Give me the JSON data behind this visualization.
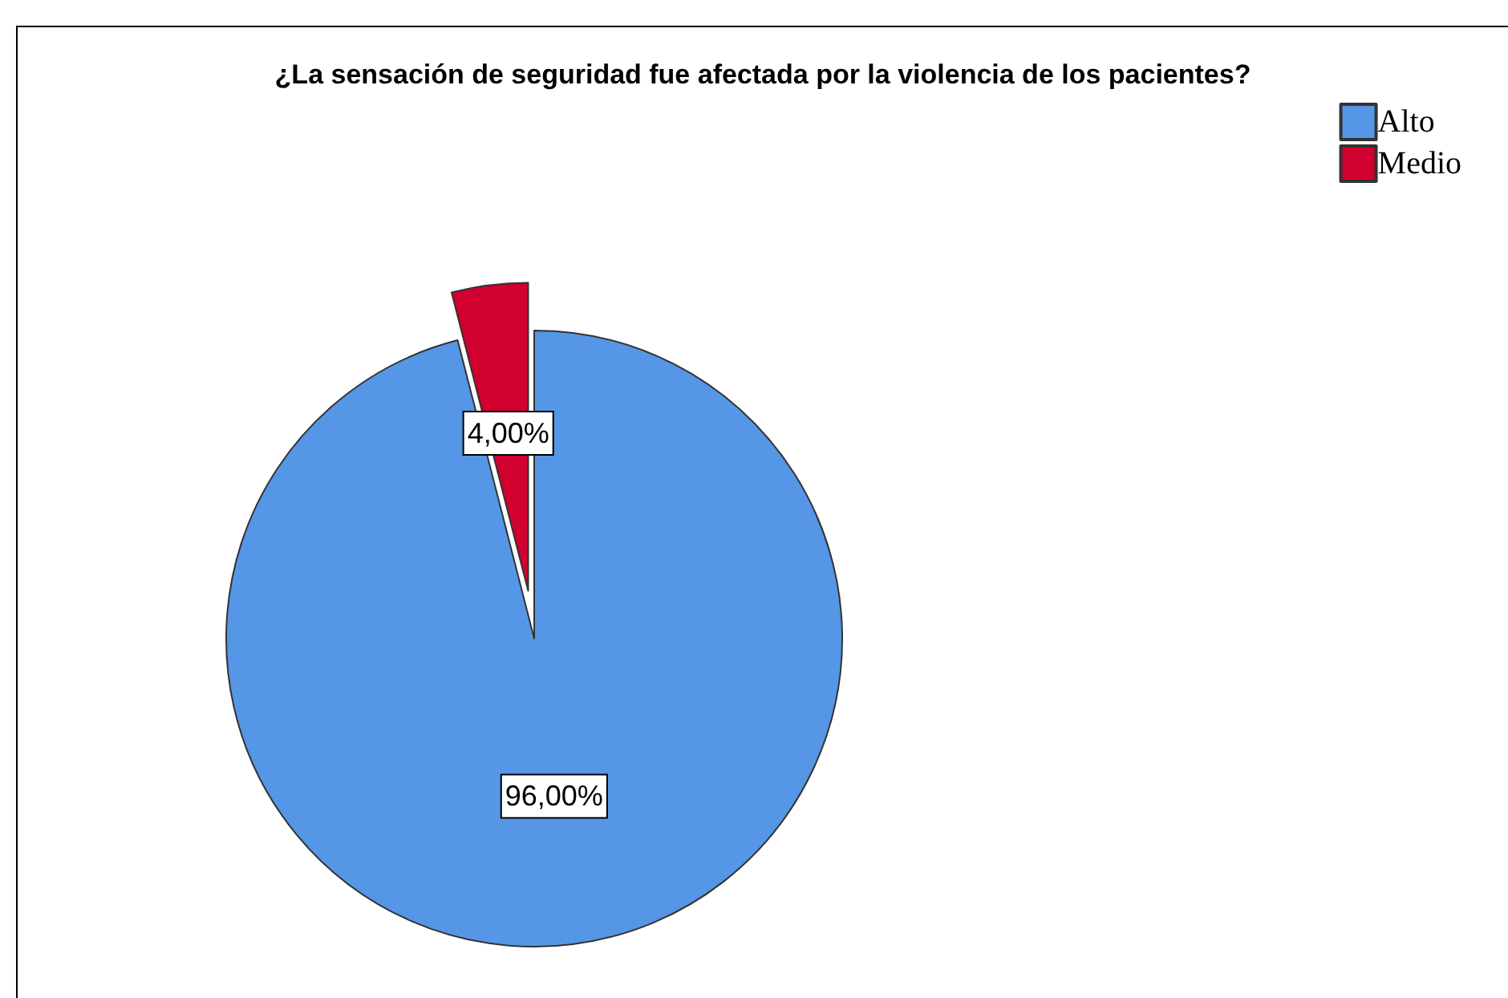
{
  "chart_data": {
    "type": "pie",
    "title": "¿La sensación de seguridad fue afectada por la violencia de los pacientes?",
    "categories": [
      "Alto",
      "Medio"
    ],
    "values": [
      96,
      4
    ],
    "colors": [
      "#5596e6",
      "#d2002f"
    ],
    "value_labels": [
      "96,00%",
      "4,00%"
    ],
    "legend": "top right"
  }
}
